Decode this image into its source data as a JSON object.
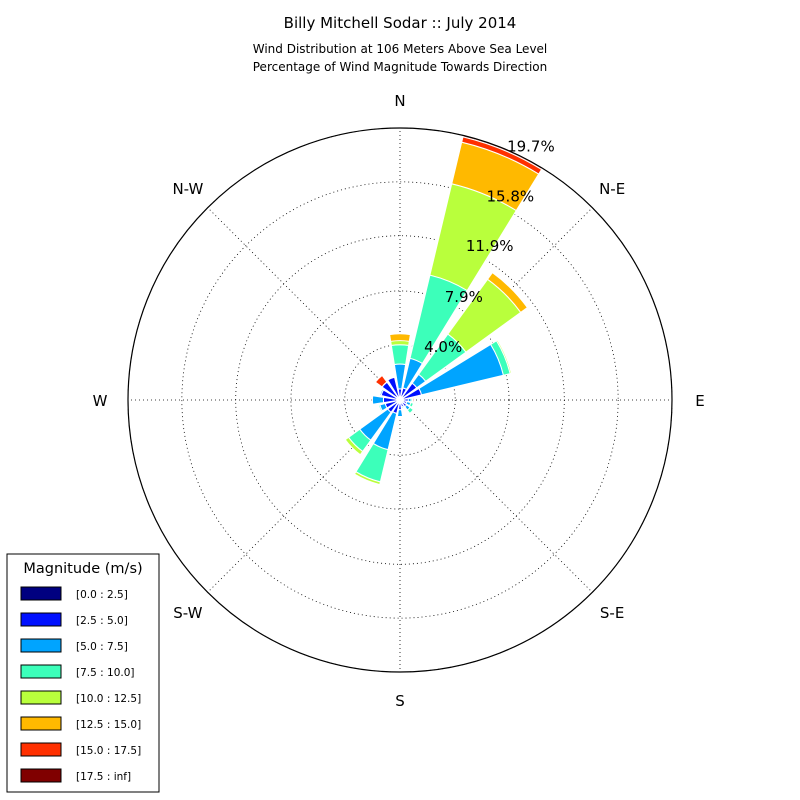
{
  "chart_data": {
    "type": "windrose",
    "title": "Billy Mitchell Sodar :: July 2014",
    "subtitle_lines": [
      "Wind Distribution at 106 Meters Above Sea Level",
      "Percentage of Wind Magnitude Towards Direction"
    ],
    "directions": [
      "N",
      "NNE",
      "NE",
      "ENE",
      "E",
      "ESE",
      "SE",
      "SSE",
      "S",
      "SSW",
      "SW",
      "WSW",
      "W",
      "WNW",
      "NW",
      "NNW"
    ],
    "direction_labels": [
      "N",
      "N-E",
      "E",
      "S-E",
      "S",
      "S-W",
      "W",
      "N-W"
    ],
    "ring_labels": [
      "4.0%",
      "7.9%",
      "11.9%",
      "15.8%",
      "19.7%"
    ],
    "ring_values": [
      4.0,
      7.9,
      11.9,
      15.8,
      19.7
    ],
    "r_max": 19.7,
    "grid": true,
    "legend_position": "lower-left",
    "legend_title": "Magnitude (m/s)",
    "bins": [
      {
        "label": "[0.0 : 2.5]",
        "color": "#000080"
      },
      {
        "label": "[2.5 : 5.0]",
        "color": "#0010ff"
      },
      {
        "label": "[5.0 : 7.5]",
        "color": "#00a4ff"
      },
      {
        "label": "[7.5 : 10.0]",
        "color": "#3cffba"
      },
      {
        "label": "[10.0 : 12.5]",
        "color": "#b9ff3c"
      },
      {
        "label": "[12.5 : 15.0]",
        "color": "#ffb900"
      },
      {
        "label": "[15.0 : 17.5]",
        "color": "#ff3000"
      },
      {
        "label": "[17.5 : inf]",
        "color": "#800000"
      }
    ],
    "cumulative_percent": {
      "N": [
        0.2,
        0.8,
        2.6,
        4.0,
        4.3,
        4.8,
        4.8,
        4.8
      ],
      "NNE": [
        0.2,
        0.9,
        3.1,
        9.3,
        16.1,
        19.2,
        19.6,
        19.7
      ],
      "NE": [
        0.2,
        1.5,
        2.3,
        5.9,
        10.8,
        11.4,
        11.4,
        11.4
      ],
      "ENE": [
        0.2,
        1.6,
        7.7,
        8.2,
        8.3,
        8.3,
        8.3,
        8.3
      ],
      "E": [
        0.2,
        0.6,
        0.8,
        0.9,
        0.9,
        0.9,
        1.0,
        1.0
      ],
      "ESE": [
        0.2,
        0.5,
        0.8,
        1.0,
        1.0,
        1.0,
        1.0,
        1.0
      ],
      "SE": [
        0.2,
        0.6,
        0.9,
        1.2,
        1.2,
        1.2,
        1.2,
        1.2
      ],
      "SSE": [
        0.2,
        0.5,
        0.6,
        0.6,
        0.6,
        0.6,
        0.6,
        0.6
      ],
      "S": [
        0.2,
        0.7,
        1.2,
        1.2,
        1.2,
        1.2,
        1.2,
        1.2
      ],
      "SSW": [
        0.2,
        1.0,
        3.7,
        6.1,
        6.3,
        6.3,
        6.3,
        6.3
      ],
      "SW": [
        0.2,
        1.1,
        3.6,
        4.6,
        4.9,
        4.9,
        4.9,
        4.9
      ],
      "WSW": [
        0.2,
        1.1,
        1.5,
        1.6,
        1.6,
        1.6,
        1.6,
        1.6
      ],
      "W": [
        0.2,
        1.2,
        2.0,
        2.0,
        2.0,
        2.0,
        2.0,
        2.0
      ],
      "WNW": [
        0.2,
        1.4,
        1.5,
        1.5,
        1.5,
        1.5,
        1.5,
        1.5
      ],
      "NW": [
        0.2,
        1.6,
        1.6,
        1.6,
        1.6,
        1.6,
        2.2,
        2.2
      ],
      "NNW": [
        0.2,
        1.7,
        1.7,
        1.7,
        1.7,
        1.7,
        1.7,
        1.7
      ]
    }
  }
}
